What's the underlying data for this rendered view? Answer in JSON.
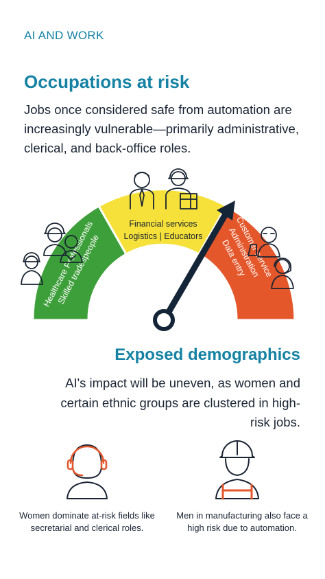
{
  "kicker": "AI AND WORK",
  "occupations": {
    "title": "Occupations at risk",
    "intro": "Jobs once considered safe from automation are increasingly vulnerable—primarily administrative, clerical, and back-office roles."
  },
  "gauge": {
    "needle_icon": "arrow-needle-icon",
    "segments": [
      {
        "color": "#3d9f3a",
        "lines": [
          "Healthcare Professionals",
          "Skilled tradespeople"
        ],
        "icons": [
          "construction-worker-icon",
          "nurse-icon",
          "worker-icon"
        ]
      },
      {
        "color": "#f6e13a",
        "lines": [
          "Financial services",
          "Logistics | Educators"
        ],
        "icons": [
          "businessman-icon",
          "delivery-worker-icon"
        ]
      },
      {
        "color": "#e3572b",
        "lines": [
          "Customer service",
          "Administration",
          "Data entry"
        ],
        "icons": [
          "office-worker-icon",
          "headset-agent-icon"
        ]
      }
    ]
  },
  "demographics": {
    "title": "Exposed demographics",
    "intro": "AI's impact will be uneven, as women and certain ethnic groups are clustered in high-risk jobs.",
    "cards": [
      {
        "icon": "woman-headset-icon",
        "text": "Women dominate at-risk fields like secretarial and clerical roles."
      },
      {
        "icon": "hardhat-worker-icon",
        "text": "Men in manufacturing also face a high risk due to automation."
      }
    ]
  },
  "colors": {
    "accent": "#1582a4",
    "text": "#1a2433",
    "green": "#3d9f3a",
    "yellow": "#f6e13a",
    "red": "#e3572b",
    "needle": "#152538"
  }
}
